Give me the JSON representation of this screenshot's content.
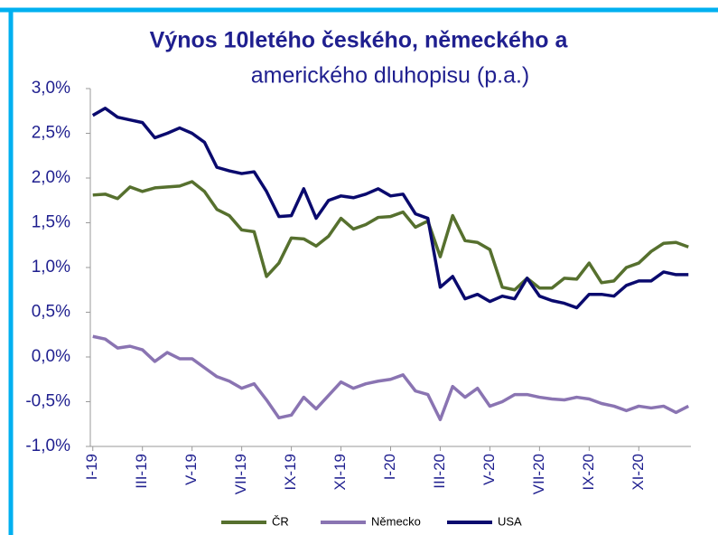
{
  "chart_data": {
    "type": "line",
    "title": "Výnos 10letého českého, německého a",
    "subtitle": "amerického dluhopisu (p.a.)",
    "x": [
      0,
      0.5,
      1,
      1.5,
      2,
      2.5,
      3,
      3.5,
      4,
      4.5,
      5,
      5.5,
      6,
      6.5,
      7,
      7.5,
      8,
      8.5,
      9,
      9.5,
      10,
      10.5,
      11,
      11.5,
      12,
      12.5,
      13,
      13.5,
      14,
      14.5,
      15,
      15.5,
      16,
      16.5,
      17,
      17.5,
      18,
      18.5,
      19,
      19.5,
      20,
      20.5,
      21,
      21.5,
      22,
      22.5,
      23,
      23.5,
      24
    ],
    "xlim": [
      -0.1,
      24.1
    ],
    "xticks": [
      {
        "value": 0,
        "label": "I-19"
      },
      {
        "value": 2,
        "label": "III-19"
      },
      {
        "value": 4,
        "label": "V-19"
      },
      {
        "value": 6,
        "label": "VII-19"
      },
      {
        "value": 8,
        "label": "IX-19"
      },
      {
        "value": 10,
        "label": "XI-19"
      },
      {
        "value": 12,
        "label": "I-20"
      },
      {
        "value": 14,
        "label": "III-20"
      },
      {
        "value": 16,
        "label": "V-20"
      },
      {
        "value": 18,
        "label": "VII-20"
      },
      {
        "value": 20,
        "label": "IX-20"
      },
      {
        "value": 22,
        "label": "XI-20"
      }
    ],
    "ylim": [
      -1,
      3
    ],
    "yticks": [
      {
        "value": -1,
        "label": "-1,0%"
      },
      {
        "value": -0.5,
        "label": "-0,5%"
      },
      {
        "value": 0,
        "label": "0,0%"
      },
      {
        "value": 0.5,
        "label": "0,5%"
      },
      {
        "value": 1,
        "label": "1,0%"
      },
      {
        "value": 1.5,
        "label": "1,5%"
      },
      {
        "value": 2,
        "label": "2,0%"
      },
      {
        "value": 2.5,
        "label": "2,5%"
      },
      {
        "value": 3,
        "label": "3,0%"
      }
    ],
    "grid": false,
    "legend": "bottom",
    "series": [
      {
        "name": "ČR",
        "color": "#56702e",
        "values": [
          1.81,
          1.82,
          1.77,
          1.9,
          1.85,
          1.89,
          1.9,
          1.91,
          1.96,
          1.85,
          1.65,
          1.58,
          1.42,
          1.4,
          0.9,
          1.05,
          1.33,
          1.32,
          1.24,
          1.35,
          1.55,
          1.43,
          1.48,
          1.56,
          1.57,
          1.62,
          1.45,
          1.52,
          1.12,
          1.58,
          1.3,
          1.28,
          1.2,
          0.78,
          0.75,
          0.88,
          0.77,
          0.77,
          0.88,
          0.87,
          1.05,
          0.83,
          0.85,
          1.0,
          1.05,
          1.18,
          1.27,
          1.28,
          1.23
        ]
      },
      {
        "name": "Německo",
        "color": "#8a74b2",
        "values": [
          0.23,
          0.2,
          0.1,
          0.12,
          0.08,
          -0.05,
          0.05,
          -0.02,
          -0.02,
          -0.12,
          -0.22,
          -0.27,
          -0.35,
          -0.3,
          -0.48,
          -0.68,
          -0.65,
          -0.45,
          -0.58,
          -0.43,
          -0.28,
          -0.35,
          -0.3,
          -0.27,
          -0.25,
          -0.2,
          -0.38,
          -0.42,
          -0.7,
          -0.33,
          -0.45,
          -0.35,
          -0.55,
          -0.5,
          -0.42,
          -0.42,
          -0.45,
          -0.47,
          -0.48,
          -0.45,
          -0.47,
          -0.52,
          -0.55,
          -0.6,
          -0.55,
          -0.57,
          -0.55,
          -0.62,
          -0.55
        ]
      },
      {
        "name": "USA",
        "color": "#0a0a6e",
        "values": [
          2.7,
          2.78,
          2.68,
          2.65,
          2.62,
          2.45,
          2.5,
          2.56,
          2.5,
          2.4,
          2.12,
          2.08,
          2.05,
          2.07,
          1.85,
          1.57,
          1.58,
          1.88,
          1.55,
          1.75,
          1.8,
          1.78,
          1.82,
          1.88,
          1.8,
          1.82,
          1.6,
          1.55,
          0.78,
          0.9,
          0.65,
          0.7,
          0.62,
          0.68,
          0.65,
          0.88,
          0.68,
          0.63,
          0.6,
          0.55,
          0.7,
          0.7,
          0.68,
          0.8,
          0.85,
          0.85,
          0.95,
          0.92,
          0.92
        ]
      }
    ]
  }
}
